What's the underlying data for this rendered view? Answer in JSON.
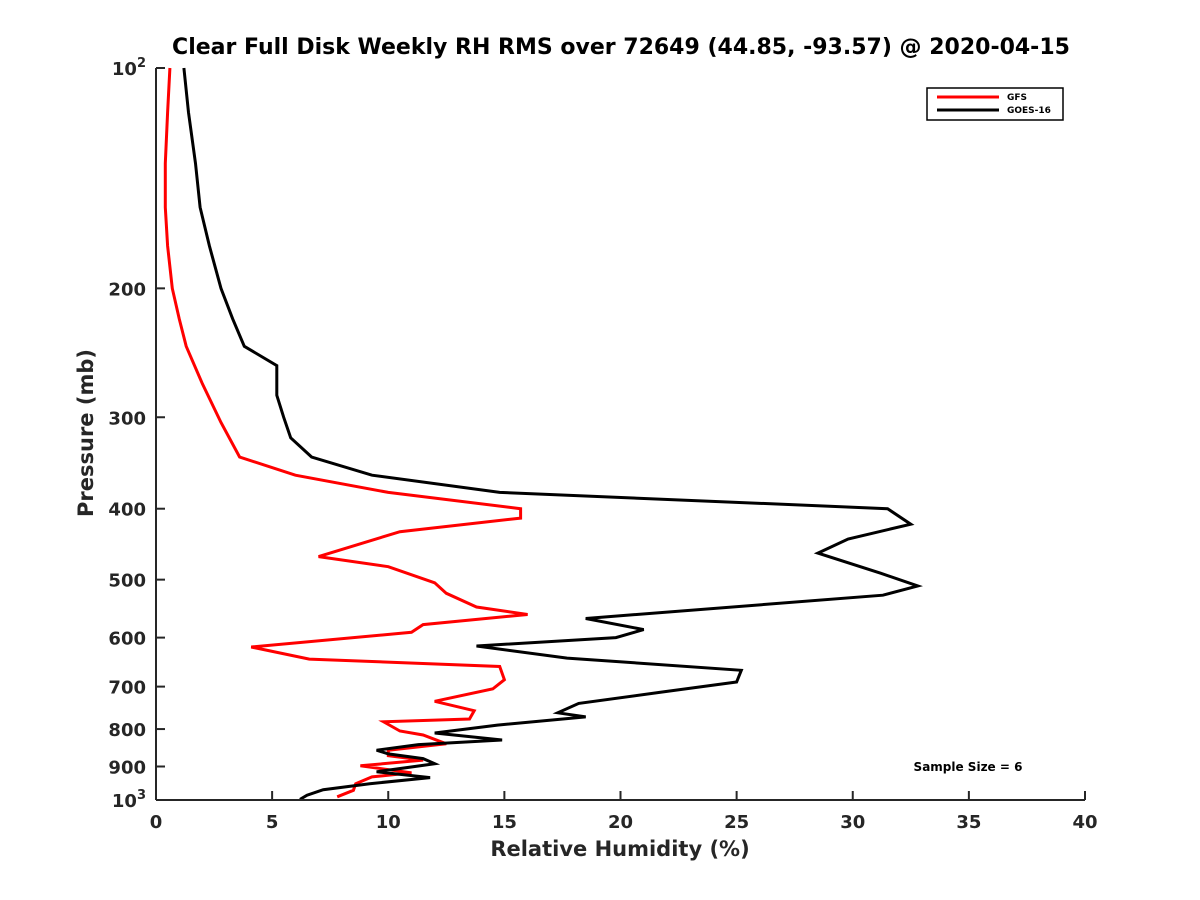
{
  "chart_data": {
    "type": "line",
    "title": "Clear Full Disk Weekly RH RMS over 72649 (44.85, -93.57) @ 2020-04-15",
    "xlabel": "Relative Humidity (%)",
    "ylabel": "Pressure (mb)",
    "xlim": [
      0,
      40
    ],
    "ylim": [
      100,
      1000
    ],
    "y_scale": "log",
    "y_reversed": true,
    "grid": false,
    "legend_position": "top-right",
    "x_ticks": [
      0,
      5,
      10,
      15,
      20,
      25,
      30,
      35,
      40
    ],
    "x_tick_labels": [
      "0",
      "5",
      "10",
      "15",
      "20",
      "25",
      "30",
      "35",
      "40"
    ],
    "y_ticks": [
      100,
      200,
      300,
      400,
      500,
      600,
      700,
      800,
      900,
      1000
    ],
    "y_tick_labels": [
      {
        "base": "10",
        "exp": "2"
      },
      {
        "base": "200",
        "exp": ""
      },
      {
        "base": "300",
        "exp": ""
      },
      {
        "base": "400",
        "exp": ""
      },
      {
        "base": "500",
        "exp": ""
      },
      {
        "base": "600",
        "exp": ""
      },
      {
        "base": "700",
        "exp": ""
      },
      {
        "base": "800",
        "exp": ""
      },
      {
        "base": "900",
        "exp": ""
      },
      {
        "base": "10",
        "exp": "3"
      }
    ],
    "annotation": "Sample Size = 6",
    "series": [
      {
        "name": "GFS",
        "color": "#ff0000",
        "points": [
          [
            0.6,
            100
          ],
          [
            0.5,
            115
          ],
          [
            0.4,
            135
          ],
          [
            0.4,
            155
          ],
          [
            0.5,
            175
          ],
          [
            0.7,
            200
          ],
          [
            1.0,
            220
          ],
          [
            1.3,
            240
          ],
          [
            2.0,
            270
          ],
          [
            2.8,
            305
          ],
          [
            3.6,
            340
          ],
          [
            6.0,
            360
          ],
          [
            10.0,
            380
          ],
          [
            15.7,
            400
          ],
          [
            15.7,
            412
          ],
          [
            10.5,
            430
          ],
          [
            7.0,
            465
          ],
          [
            10.0,
            480
          ],
          [
            12.0,
            505
          ],
          [
            12.5,
            522
          ],
          [
            13.8,
            545
          ],
          [
            16.0,
            558
          ],
          [
            11.5,
            576
          ],
          [
            11.0,
            590
          ],
          [
            4.1,
            618
          ],
          [
            6.6,
            642
          ],
          [
            14.8,
            657
          ],
          [
            15.0,
            685
          ],
          [
            14.5,
            705
          ],
          [
            12.0,
            733
          ],
          [
            13.7,
            755
          ],
          [
            13.5,
            775
          ],
          [
            9.8,
            782
          ],
          [
            10.5,
            805
          ],
          [
            11.5,
            815
          ],
          [
            12.5,
            838
          ],
          [
            10.0,
            855
          ],
          [
            10.0,
            870
          ],
          [
            11.5,
            882
          ],
          [
            8.8,
            898
          ],
          [
            11.0,
            918
          ],
          [
            9.3,
            930
          ],
          [
            8.6,
            950
          ],
          [
            8.5,
            970
          ],
          [
            7.8,
            990
          ]
        ]
      },
      {
        "name": "GOES-16",
        "color": "#000000",
        "points": [
          [
            1.2,
            100
          ],
          [
            1.4,
            115
          ],
          [
            1.7,
            135
          ],
          [
            1.9,
            155
          ],
          [
            2.3,
            175
          ],
          [
            2.8,
            200
          ],
          [
            3.3,
            220
          ],
          [
            3.8,
            240
          ],
          [
            5.2,
            255
          ],
          [
            5.2,
            280
          ],
          [
            5.5,
            300
          ],
          [
            5.8,
            320
          ],
          [
            6.7,
            340
          ],
          [
            9.3,
            360
          ],
          [
            14.8,
            380
          ],
          [
            31.5,
            400
          ],
          [
            32.5,
            420
          ],
          [
            29.8,
            440
          ],
          [
            28.5,
            460
          ],
          [
            31.2,
            490
          ],
          [
            32.8,
            510
          ],
          [
            31.3,
            525
          ],
          [
            18.5,
            565
          ],
          [
            21.0,
            585
          ],
          [
            19.8,
            600
          ],
          [
            13.8,
            616
          ],
          [
            17.7,
            640
          ],
          [
            25.2,
            665
          ],
          [
            25.0,
            690
          ],
          [
            21.8,
            712
          ],
          [
            18.2,
            738
          ],
          [
            17.3,
            760
          ],
          [
            18.5,
            770
          ],
          [
            14.7,
            790
          ],
          [
            12.0,
            810
          ],
          [
            14.9,
            828
          ],
          [
            11.3,
            840
          ],
          [
            9.5,
            855
          ],
          [
            10.0,
            865
          ],
          [
            11.5,
            878
          ],
          [
            12.0,
            892
          ],
          [
            9.5,
            915
          ],
          [
            11.8,
            932
          ],
          [
            9.2,
            950
          ],
          [
            7.2,
            968
          ],
          [
            6.5,
            985
          ],
          [
            6.2,
            998
          ]
        ]
      }
    ]
  }
}
